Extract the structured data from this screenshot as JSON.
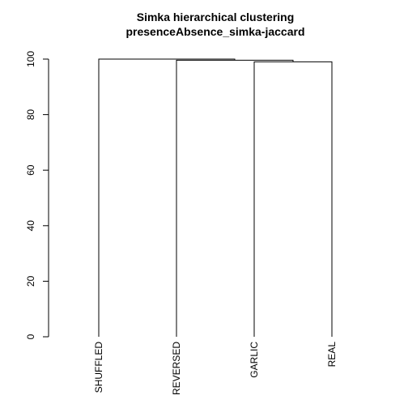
{
  "chart_data": {
    "type": "dendrogram",
    "title": "Simka hierarchical clustering",
    "subtitle": "presenceAbsence_simka-jaccard",
    "ylim": [
      0,
      100
    ],
    "y_ticks": [
      0,
      20,
      40,
      60,
      80,
      100
    ],
    "leaves": [
      "SHUFFLED",
      "REVERSED",
      "GARLIC",
      "REAL"
    ],
    "merges": [
      {
        "left": "GARLIC",
        "right": "REAL",
        "height": 99.0
      },
      {
        "left": "REVERSED",
        "right": "GARLIC+REAL",
        "height": 99.6
      },
      {
        "left": "SHUFFLED",
        "right": "REVERSED+GARLIC+REAL",
        "height": 100.0
      }
    ]
  },
  "colors": {
    "lines": "#000000",
    "background": "#ffffff"
  }
}
